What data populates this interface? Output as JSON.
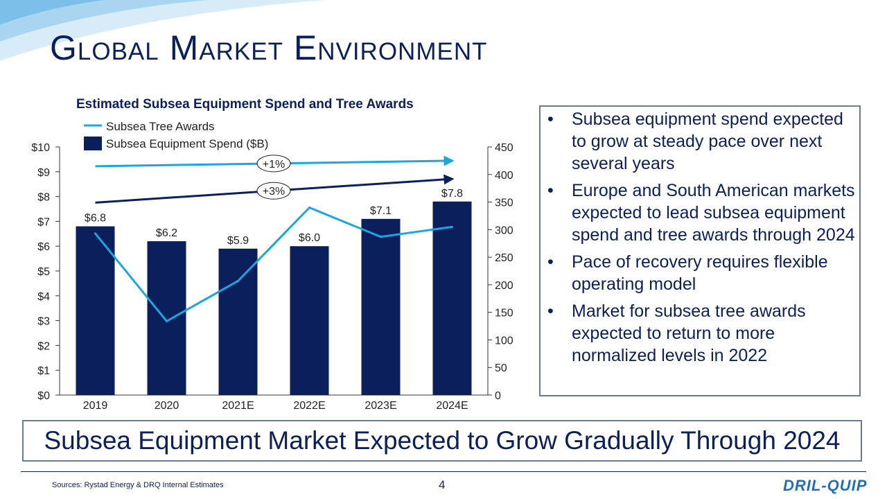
{
  "page": {
    "title": "Global Market Environment",
    "headline": "Subsea Equipment Market Expected to Grow Gradually Through 2024",
    "source": "Sources: Rystad Energy & DRQ Internal Estimates",
    "page_number": "4",
    "logo_text": "DRIL-QUIP"
  },
  "bullets": [
    "Subsea equipment spend expected to grow at steady pace over next several years",
    "Europe and South American markets expected to lead subsea equipment spend and tree awards through 2024",
    "Pace of recovery requires flexible operating model",
    "Market for subsea tree awards expected to return to more normalized levels in 2022"
  ],
  "bullet_symbol": "•",
  "colors": {
    "navy": "#0b1f5c",
    "tree_line": "#1aa7e0",
    "trend_light": "#1aa7e0",
    "trend_dark": "#0b1f5c",
    "axis": "#333333"
  },
  "chart_data": {
    "type": "bar",
    "title": "Estimated Subsea Equipment Spend and Tree Awards",
    "categories": [
      "2019",
      "2020",
      "2021E",
      "2022E",
      "2023E",
      "2024E"
    ],
    "series": [
      {
        "name": "Subsea Equipment Spend ($B)",
        "type": "bar",
        "axis": "left",
        "values": [
          6.8,
          6.2,
          5.9,
          6.0,
          7.1,
          7.8
        ],
        "labels": [
          "$6.8",
          "$6.2",
          "$5.9",
          "$6.0",
          "$7.1",
          "$7.8"
        ]
      },
      {
        "name": "Subsea Tree Awards",
        "type": "line",
        "axis": "right",
        "values": [
          293,
          134,
          207,
          340,
          287,
          305
        ]
      }
    ],
    "y_left": {
      "ylim": [
        0,
        10
      ],
      "ticks": [
        0,
        1,
        2,
        3,
        4,
        5,
        6,
        7,
        8,
        9,
        10
      ],
      "tick_labels": [
        "$0",
        "$1",
        "$2",
        "$3",
        "$4",
        "$5",
        "$6",
        "$7",
        "$8",
        "$9",
        "$10"
      ]
    },
    "y_right": {
      "ylim": [
        0,
        450
      ],
      "ticks": [
        0,
        50,
        100,
        150,
        200,
        250,
        300,
        350,
        400,
        450
      ],
      "tick_labels": [
        "0",
        "50",
        "100",
        "150",
        "200",
        "250",
        "300",
        "350",
        "400",
        "450"
      ]
    },
    "trend_arrows": [
      {
        "label": "+1%",
        "from_value": 415,
        "to_value": 425,
        "color": "#1aa7e0"
      },
      {
        "label": "+3%",
        "from_value": 349,
        "to_value": 392,
        "color": "#0b1f5c"
      }
    ],
    "legend_position": "top-left",
    "grid": false
  }
}
